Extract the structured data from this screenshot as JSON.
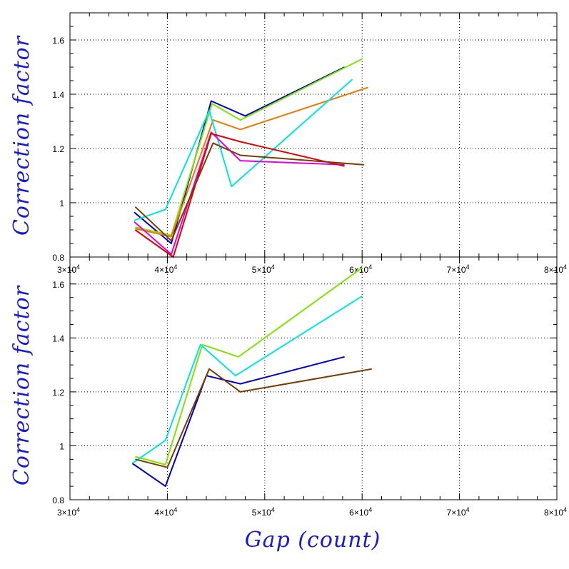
{
  "chart_data": [
    {
      "type": "line",
      "ylabel": "Correction factor",
      "xlabel": "",
      "xlim": [
        30000,
        80000
      ],
      "ylim": [
        0.8,
        1.7
      ],
      "grid": true,
      "x_ticks": [
        {
          "value": 30000,
          "mantissa": "3",
          "exponent": "4"
        },
        {
          "value": 40000,
          "mantissa": "4",
          "exponent": "4"
        },
        {
          "value": 50000,
          "mantissa": "5",
          "exponent": "4"
        },
        {
          "value": 60000,
          "mantissa": "6",
          "exponent": "4"
        },
        {
          "value": 70000,
          "mantissa": "7",
          "exponent": "4"
        },
        {
          "value": 80000,
          "mantissa": "8",
          "exponent": "4"
        }
      ],
      "y_ticks": [
        {
          "value": 0.8,
          "label": "0.8"
        },
        {
          "value": 1.0,
          "label": "1"
        },
        {
          "value": 1.2,
          "label": "1.2"
        },
        {
          "value": 1.4,
          "label": "1.4"
        },
        {
          "value": 1.6,
          "label": "1.6"
        }
      ],
      "series": [
        {
          "color": "#0000cc",
          "x": [
            36600,
            40400,
            44500,
            48000,
            58200
          ],
          "y": [
            0.965,
            0.85,
            1.375,
            1.32,
            1.5
          ]
        },
        {
          "color": "#7fe600",
          "x": [
            36700,
            40400,
            44600,
            47500,
            60000
          ],
          "y": [
            0.91,
            0.88,
            1.365,
            1.305,
            1.53
          ]
        },
        {
          "color": "#f07800",
          "x": [
            36700,
            40400,
            44700,
            47500,
            60600
          ],
          "y": [
            0.905,
            0.875,
            1.305,
            1.27,
            1.425
          ]
        },
        {
          "color": "#00e6e6",
          "x": [
            36600,
            39800,
            44300,
            46600,
            59000
          ],
          "y": [
            0.935,
            0.975,
            1.34,
            1.06,
            1.455
          ]
        },
        {
          "color": "#e600e6",
          "x": [
            36600,
            40400,
            44500,
            47500,
            58200
          ],
          "y": [
            0.93,
            0.81,
            1.26,
            1.155,
            1.14
          ]
        },
        {
          "color": "#e60000",
          "x": [
            36700,
            40600,
            44500,
            47500,
            58200
          ],
          "y": [
            0.9,
            0.8,
            1.255,
            1.225,
            1.135
          ]
        },
        {
          "color": "#7a3d00",
          "x": [
            36700,
            40400,
            44700,
            47500,
            60200
          ],
          "y": [
            0.985,
            0.86,
            1.22,
            1.175,
            1.14
          ]
        }
      ]
    },
    {
      "type": "line",
      "ylabel": "Correction factor",
      "xlabel": "Gap (count)",
      "xlim": [
        30000,
        80000
      ],
      "ylim": [
        0.8,
        1.7
      ],
      "grid": true,
      "x_ticks": [
        {
          "value": 30000,
          "mantissa": "3",
          "exponent": "4"
        },
        {
          "value": 40000,
          "mantissa": "4",
          "exponent": "4"
        },
        {
          "value": 50000,
          "mantissa": "5",
          "exponent": "4"
        },
        {
          "value": 60000,
          "mantissa": "6",
          "exponent": "4"
        },
        {
          "value": 70000,
          "mantissa": "7",
          "exponent": "4"
        },
        {
          "value": 80000,
          "mantissa": "8",
          "exponent": "4"
        }
      ],
      "y_ticks": [
        {
          "value": 0.8,
          "label": "0.8"
        },
        {
          "value": 1.0,
          "label": "1"
        },
        {
          "value": 1.2,
          "label": "1.2"
        },
        {
          "value": 1.4,
          "label": "1.4"
        },
        {
          "value": 1.6,
          "label": "1.6"
        }
      ],
      "series": [
        {
          "color": "#0000cc",
          "x": [
            36400,
            39800,
            44000,
            47500,
            58200
          ],
          "y": [
            0.935,
            0.85,
            1.26,
            1.23,
            1.33
          ]
        },
        {
          "color": "#7fe600",
          "x": [
            36700,
            39800,
            43600,
            47300,
            60000
          ],
          "y": [
            0.96,
            0.93,
            1.375,
            1.33,
            1.66
          ]
        },
        {
          "color": "#00e6e6",
          "x": [
            36400,
            39800,
            43400,
            47000,
            60000
          ],
          "y": [
            0.935,
            1.02,
            1.375,
            1.26,
            1.555
          ]
        },
        {
          "color": "#7a3d00",
          "x": [
            36700,
            40000,
            44300,
            47500,
            61000
          ],
          "y": [
            0.95,
            0.92,
            1.285,
            1.2,
            1.285
          ]
        }
      ]
    }
  ]
}
